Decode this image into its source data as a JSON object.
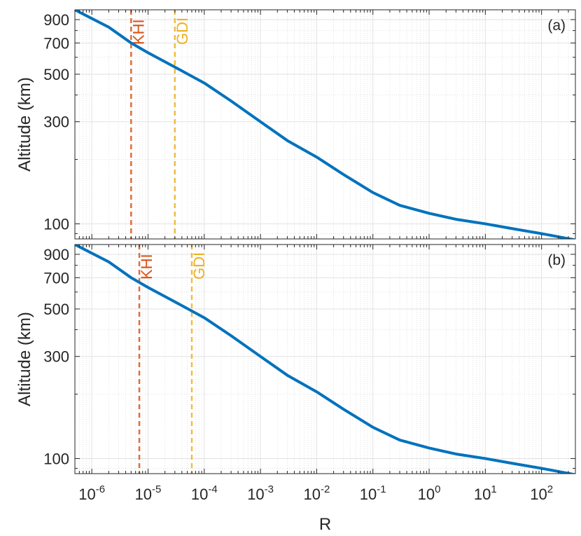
{
  "chart_data": [
    {
      "type": "line",
      "panel_label": "(a)",
      "xlabel": "",
      "ylabel": "Altitude (km)",
      "xscale": "log",
      "yscale": "log",
      "xlim": [
        5e-07,
        400
      ],
      "ylim": [
        85,
        1000
      ],
      "grid": true,
      "minor_grid": true,
      "x_tick_labels": [],
      "y_ticks": [
        100,
        300,
        500,
        700,
        900
      ],
      "y_tick_labels": [
        "100",
        "300",
        "500",
        "700",
        "900"
      ],
      "series": [
        {
          "color": "#0072bd",
          "x": [
            5e-07,
            2e-06,
            5e-06,
            1e-05,
            3e-05,
            0.0001,
            0.0003,
            0.001,
            0.003,
            0.01,
            0.03,
            0.1,
            0.3,
            1,
            3,
            10,
            30,
            100,
            200,
            400
          ],
          "y": [
            1000,
            830,
            700,
            630,
            540,
            455,
            375,
            300,
            245,
            205,
            170,
            140,
            122,
            112,
            105,
            100,
            95,
            90,
            87,
            84
          ]
        }
      ],
      "vlines": [
        {
          "label": "KHI",
          "x": 5e-06,
          "color": "#d95319"
        },
        {
          "label": "GDI",
          "x": 3e-05,
          "color": "#edb120"
        }
      ]
    },
    {
      "type": "line",
      "panel_label": "(b)",
      "xlabel": "R",
      "ylabel": "Altitude (km)",
      "xscale": "log",
      "yscale": "log",
      "xlim": [
        5e-07,
        400
      ],
      "ylim": [
        85,
        1000
      ],
      "grid": true,
      "minor_grid": true,
      "x_tick_exponents": [
        -6,
        -5,
        -4,
        -3,
        -2,
        -1,
        0,
        1,
        2
      ],
      "x_tick_base": "10",
      "y_ticks": [
        100,
        300,
        500,
        700,
        900
      ],
      "y_tick_labels": [
        "100",
        "300",
        "500",
        "700",
        "900"
      ],
      "series": [
        {
          "color": "#0072bd",
          "x": [
            5e-07,
            2e-06,
            5e-06,
            1e-05,
            3e-05,
            0.0001,
            0.0003,
            0.001,
            0.003,
            0.01,
            0.03,
            0.1,
            0.3,
            1,
            3,
            10,
            30,
            100,
            200,
            400
          ],
          "y": [
            1000,
            830,
            700,
            630,
            540,
            455,
            375,
            300,
            245,
            205,
            170,
            140,
            122,
            112,
            105,
            100,
            95,
            90,
            87,
            84
          ]
        }
      ],
      "vlines": [
        {
          "label": "KHI",
          "x": 7e-06,
          "color": "#d95319"
        },
        {
          "label": "GDI",
          "x": 6e-05,
          "color": "#edb120"
        }
      ]
    }
  ]
}
